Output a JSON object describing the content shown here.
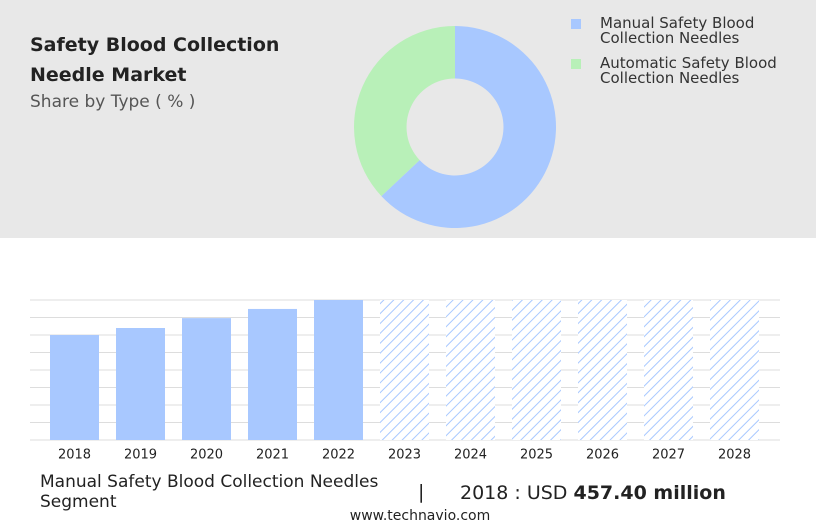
{
  "chart_data": [
    {
      "type": "pie",
      "title": "Safety Blood Collection Needle Market",
      "subtitle": "Share by Type ( % )",
      "categories": [
        "Manual Safety Blood Collection Needles",
        "Automatic Safety Blood Collection Needles"
      ],
      "values": [
        63,
        37
      ],
      "colors": [
        "#a8c8ff",
        "#b8f0b8"
      ],
      "hole": 0.48
    },
    {
      "type": "bar",
      "categories": [
        "2018",
        "2019",
        "2020",
        "2021",
        "2022",
        "2023",
        "2024",
        "2025",
        "2026",
        "2027",
        "2028"
      ],
      "values": [
        457.4,
        488,
        531,
        571,
        610,
        null,
        null,
        null,
        null,
        null,
        null
      ],
      "color": "#a8c8ff",
      "ylim": [
        0,
        610
      ],
      "yticks": [
        0,
        76.25,
        152.5,
        228.75,
        305,
        381.25,
        457.5,
        533.75,
        610
      ],
      "grid": true
    }
  ],
  "footer": {
    "segment": "Manual Safety Blood Collection Needles Segment",
    "separator": "|",
    "stat_prefix": "2018 : USD",
    "stat_value": "457.40 million",
    "source": "www.technavio.com"
  }
}
